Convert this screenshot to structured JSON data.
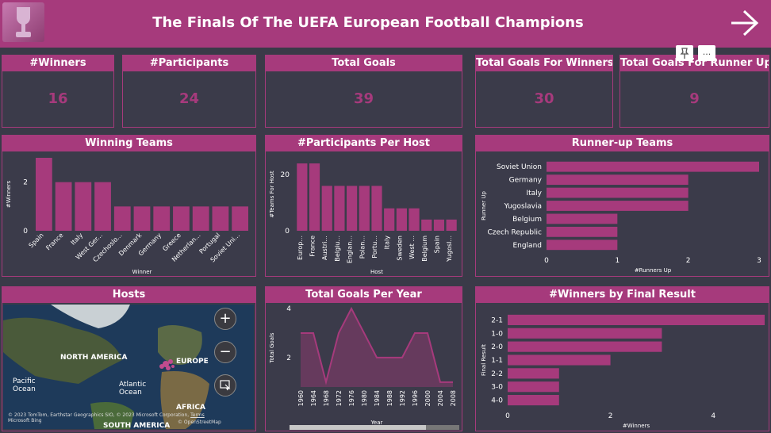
{
  "header": {
    "title": "The Finals Of The UEFA European Football Champions"
  },
  "kpis": [
    {
      "label": "#Winners",
      "value": "16"
    },
    {
      "label": "#Participants",
      "value": "24"
    },
    {
      "label": "Total Goals",
      "value": "39"
    },
    {
      "label": "Total Goals For Winners",
      "value": "30"
    },
    {
      "label": "Total Goals For Runner Up",
      "value": "9"
    }
  ],
  "visual_menu": {
    "more": "..."
  },
  "map": {
    "title": "Hosts",
    "labels": {
      "na": "NORTH AMERICA",
      "eu": "EUROPE",
      "pac": "Pacific Ocean",
      "atl": "Atlantic Ocean",
      "af": "AFRICA",
      "sa": "SOUTH AMERICA"
    },
    "copyright": "© 2023 TomTom, Earthstar Geographics SIO, © 2023 Microsoft Corporation,",
    "terms": "Terms",
    "osm": "© OpenStreetMap",
    "bing": "Microsoft Bing",
    "zoom_in": "+",
    "zoom_out": "−"
  },
  "colors": {
    "accent": "#a63a7c",
    "bar": "#a63a7c",
    "background": "#3a3a48"
  },
  "chart_data": [
    {
      "id": "winning",
      "type": "bar",
      "title": "Winning Teams",
      "xlabel": "Winner",
      "ylabel": "#Winners",
      "categories": [
        "Spain",
        "France",
        "Italy",
        "West Ger...",
        "Czechoslo...",
        "Denmark",
        "Germany",
        "Greece",
        "Netherlan...",
        "Portugal",
        "Soviet Uni..."
      ],
      "values": [
        3,
        2,
        2,
        2,
        1,
        1,
        1,
        1,
        1,
        1,
        1
      ],
      "ylim": [
        0,
        3
      ],
      "yticks": [
        0,
        2
      ]
    },
    {
      "id": "hosts",
      "type": "bar",
      "title": "#Participants Per Host",
      "xlabel": "Host",
      "ylabel": "#Teams For Host",
      "categories": [
        "Europ...",
        "France",
        "Austri...",
        "Belgiu...",
        "Englan...",
        "Polan...",
        "Portu...",
        "Italy",
        "Sweden",
        "West ...",
        "Belgium",
        "Spain",
        "Yugosl..."
      ],
      "values": [
        24,
        24,
        16,
        16,
        16,
        16,
        16,
        8,
        8,
        8,
        4,
        4,
        4
      ],
      "ylim": [
        0,
        26
      ],
      "yticks": [
        0,
        20
      ]
    },
    {
      "id": "runnerup",
      "type": "bar",
      "orientation": "horizontal",
      "title": "Runner-up Teams",
      "xlabel": "#Runners Up",
      "ylabel": "Runner Up",
      "categories": [
        "Soviet Union",
        "Germany",
        "Italy",
        "Yugoslavia",
        "Belgium",
        "Czech Republic",
        "England"
      ],
      "values": [
        3,
        2,
        2,
        2,
        1,
        1,
        1
      ],
      "xlim": [
        0,
        3
      ],
      "xticks": [
        0,
        1,
        2,
        3
      ]
    },
    {
      "id": "goals",
      "type": "area",
      "title": "Total Goals Per Year",
      "xlabel": "Year",
      "ylabel": "Total Goals",
      "x": [
        "1960",
        "1964",
        "1968",
        "1972",
        "1976",
        "1980",
        "1984",
        "1988",
        "1992",
        "1996",
        "2000",
        "2004",
        "2008"
      ],
      "values": [
        3,
        3,
        1,
        3,
        4,
        3,
        2,
        2,
        2,
        3,
        3,
        1,
        1
      ],
      "ylim": [
        0.8,
        4
      ],
      "yticks": [
        2,
        4
      ]
    },
    {
      "id": "result",
      "type": "bar",
      "orientation": "horizontal",
      "title": "#Winners by Final Result",
      "xlabel": "#Winners",
      "ylabel": "Final Result",
      "categories": [
        "2-1",
        "1-0",
        "2-0",
        "1-1",
        "2-2",
        "3-0",
        "4-0"
      ],
      "values": [
        5,
        3,
        3,
        2,
        1,
        1,
        1
      ],
      "xlim": [
        0,
        5
      ],
      "xticks": [
        0,
        2,
        4
      ]
    }
  ]
}
